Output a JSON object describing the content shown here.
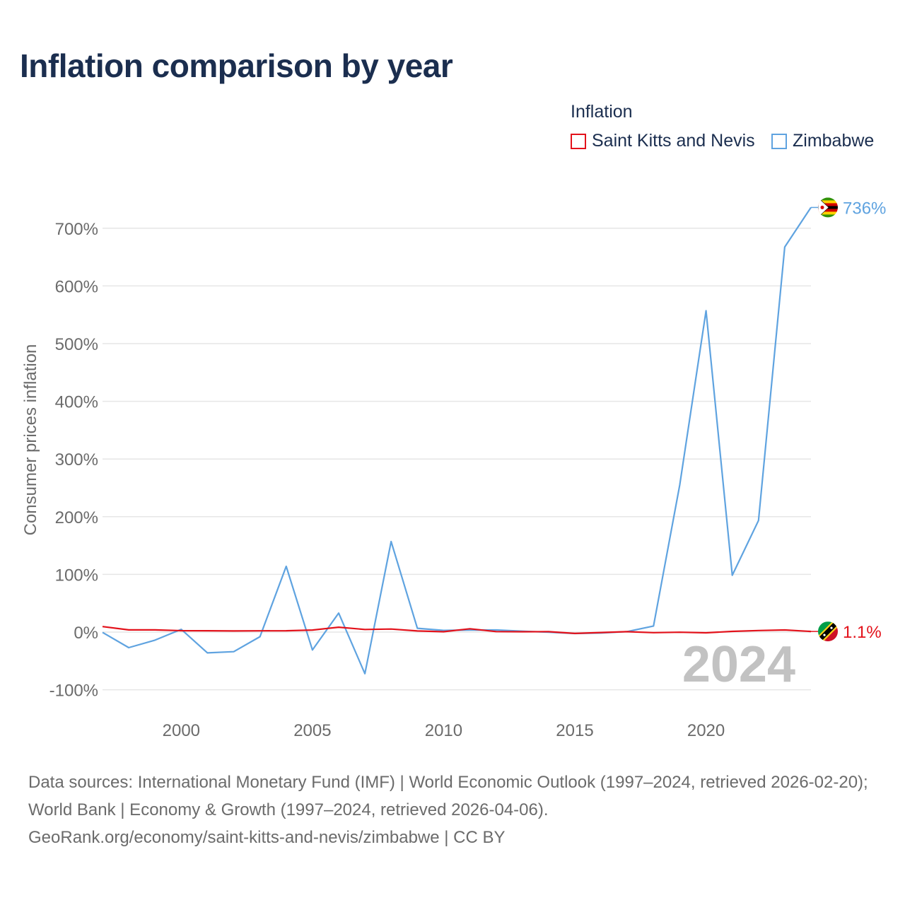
{
  "page": {
    "title": "Inflation comparison by year"
  },
  "legend": {
    "title": "Inflation",
    "items": [
      {
        "label": "Saint Kitts and Nevis",
        "color": "#e3121b"
      },
      {
        "label": "Zimbabwe",
        "color": "#5fa3e0"
      }
    ]
  },
  "chart_data": {
    "type": "line",
    "title": "Inflation comparison by year",
    "xlabel": "",
    "ylabel": "Consumer prices inflation",
    "xlim": [
      1997,
      2024
    ],
    "ylim": [
      -100,
      700
    ],
    "yticks": [
      -100,
      0,
      100,
      200,
      300,
      400,
      500,
      600,
      700
    ],
    "ytick_labels": [
      "-100%",
      "0%",
      "100%",
      "200%",
      "300%",
      "400%",
      "500%",
      "600%",
      "700%"
    ],
    "xticks": [
      2000,
      2005,
      2010,
      2015,
      2020
    ],
    "xtick_labels": [
      "2000",
      "2005",
      "2010",
      "2015",
      "2020"
    ],
    "grid": true,
    "x": [
      1997,
      1998,
      1999,
      2000,
      2001,
      2002,
      2003,
      2004,
      2005,
      2006,
      2007,
      2008,
      2009,
      2010,
      2011,
      2012,
      2013,
      2014,
      2015,
      2016,
      2017,
      2018,
      2019,
      2020,
      2021,
      2022,
      2023,
      2024
    ],
    "series": [
      {
        "name": "Saint Kitts and Nevis",
        "color": "#e3121b",
        "values": [
          9.5,
          3.8,
          3.8,
          2.4,
          2.3,
          2.0,
          2.2,
          2.3,
          3.5,
          8.5,
          4.5,
          5.3,
          1.9,
          0.6,
          5.8,
          0.8,
          0.6,
          0.7,
          -2.3,
          -0.7,
          0.7,
          -1.0,
          -0.3,
          -1.2,
          1.2,
          2.7,
          3.7,
          1.1
        ],
        "end_label": "1.1%"
      },
      {
        "name": "Zimbabwe",
        "color": "#5fa3e0",
        "values": [
          -0.5,
          -27.0,
          -14.0,
          4.8,
          -36.0,
          -34.0,
          -8.0,
          114.0,
          -31.0,
          33.0,
          -72.0,
          157.0,
          6.6,
          3.0,
          3.5,
          3.7,
          1.6,
          -0.2,
          -2.4,
          -1.6,
          0.9,
          10.6,
          255.0,
          557.0,
          98.5,
          193.4,
          667.4,
          736.0
        ],
        "end_label": "736%"
      }
    ],
    "annotations": [
      {
        "text": "2024",
        "position": "bottom-right"
      }
    ]
  },
  "footer": {
    "sources": "Data sources: International Monetary Fund (IMF) | World Economic Outlook (1997–2024, retrieved 2026-02-20); World Bank | Economy & Growth (1997–2024, retrieved 2026-04-06).",
    "credit": "GeoRank.org/economy/saint-kitts-and-nevis/zimbabwe | CC BY"
  }
}
